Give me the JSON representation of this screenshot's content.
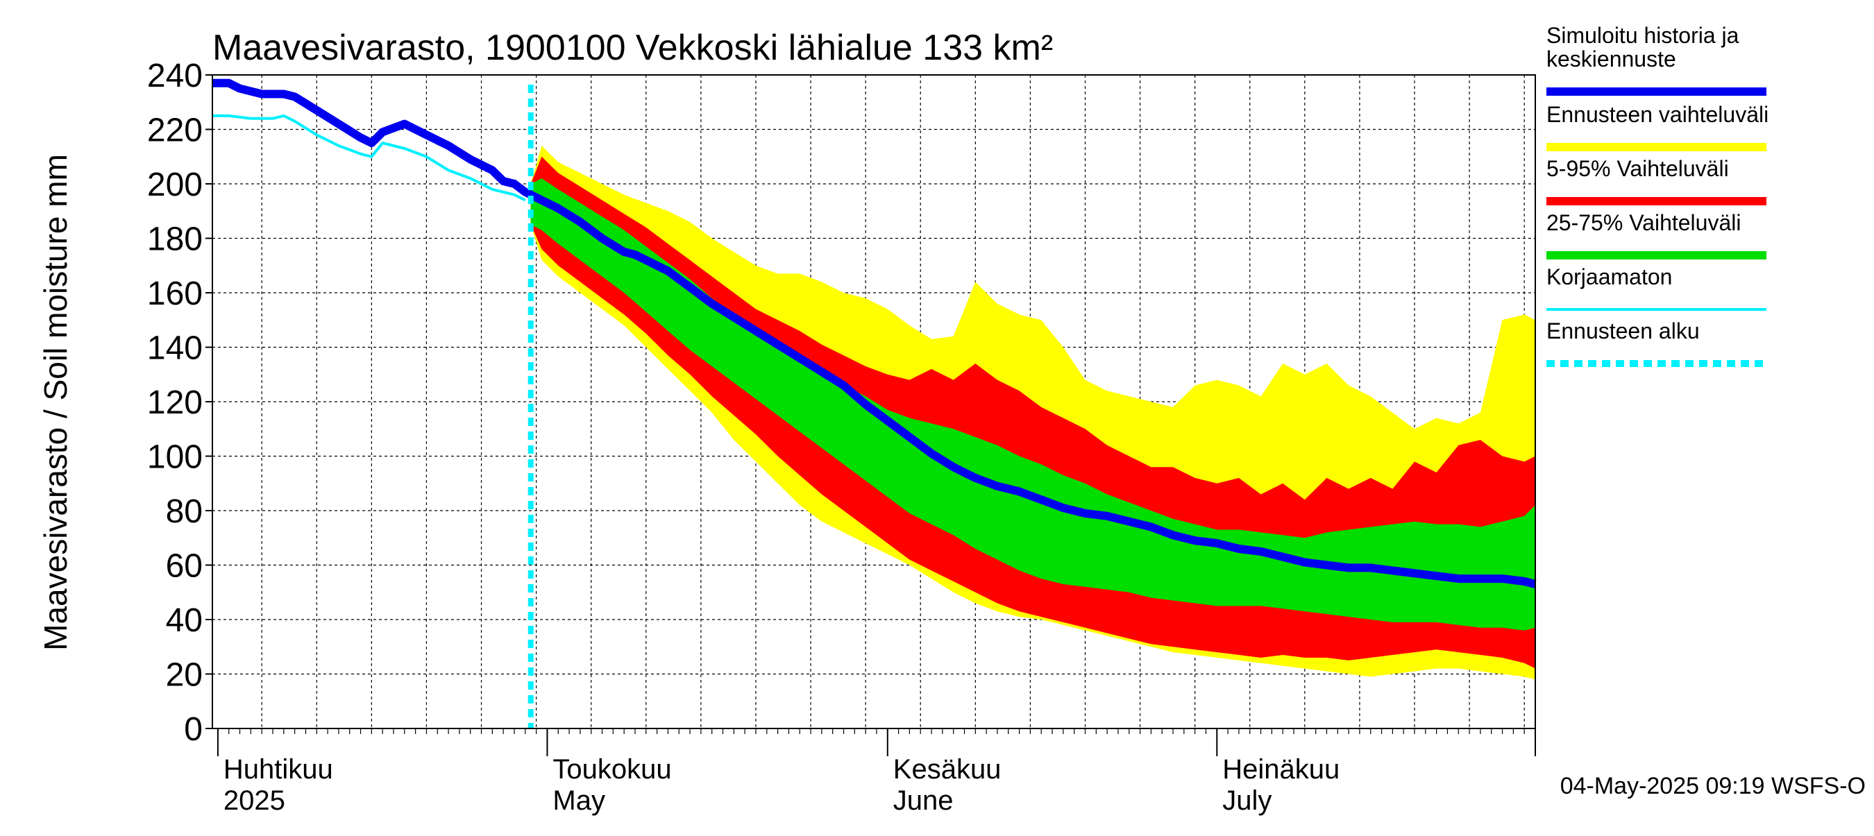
{
  "colors": {
    "simulated": "#0000ee",
    "uncorrected": "#00f0ff",
    "range_full": "#ffff00",
    "range_5_95": "#ff0000",
    "range_25_75": "#00dd00",
    "forecast_start": "#00f0ff"
  },
  "chart_data": {
    "type": "area",
    "title": "Maavesivarasto, 1900100 Vekkoski lähialue 133 km²",
    "ylabel": "Maavesivarasto / Soil moisture   mm",
    "xlabel": "",
    "ylim": [
      0,
      240
    ],
    "yticks": [
      0,
      20,
      40,
      60,
      80,
      100,
      120,
      140,
      160,
      180,
      200,
      220,
      240
    ],
    "grid": true,
    "x_unit": "day of year 2025",
    "x_start_day": 90.5,
    "x_end_day": 211,
    "month_starts": [
      91,
      121,
      152,
      182
    ],
    "month_labels": [
      {
        "day": 91,
        "fi": "Huhtikuu",
        "en": "2025"
      },
      {
        "day": 121,
        "fi": "Toukokuu",
        "en": "May"
      },
      {
        "day": 152,
        "fi": "Kesäkuu",
        "en": "June"
      },
      {
        "day": 182,
        "fi": "Heinäkuu",
        "en": "July"
      }
    ],
    "forecast_start_day": 119.5,
    "legend": [
      {
        "key": "simulated",
        "label": "Simuloitu historia ja keskiennuste",
        "lines": [
          "Simuloitu historia ja",
          "keskiennuste"
        ],
        "style": "line"
      },
      {
        "key": "range_full",
        "label": "Ennusteen vaihteluväli",
        "lines": [
          "Ennusteen vaihteluväli"
        ],
        "style": "band"
      },
      {
        "key": "range_5_95",
        "label": "5-95% Vaihteluväli",
        "lines": [
          "5-95% Vaihteluväli"
        ],
        "style": "band"
      },
      {
        "key": "range_25_75",
        "label": "25-75% Vaihteluväli",
        "lines": [
          "25-75% Vaihteluväli"
        ],
        "style": "band"
      },
      {
        "key": "uncorrected",
        "label": "Korjaamaton",
        "lines": [
          "Korjaamaton"
        ],
        "style": "thin"
      },
      {
        "key": "forecast_start",
        "label": "Ennusteen alku",
        "lines": [
          "Ennusteen alku"
        ],
        "style": "dotted"
      }
    ],
    "legend_position": "right",
    "footer": "04-May-2025 09:19 WSFS-O",
    "series": [
      {
        "name": "Simuloitu historia ja keskiennuste",
        "x": [
          90.5,
          92,
          93,
          95,
          96,
          97,
          98,
          100,
          102,
          104,
          105,
          106,
          108,
          110,
          112,
          114,
          116,
          117,
          118,
          119,
          120,
          121,
          122,
          124,
          126,
          128,
          129,
          130,
          132,
          134,
          136,
          138,
          140,
          142,
          144,
          146,
          148,
          150,
          152,
          154,
          156,
          158,
          160,
          162,
          164,
          166,
          168,
          170,
          172,
          174,
          176,
          178,
          180,
          182,
          184,
          186,
          188,
          190,
          192,
          194,
          196,
          198,
          200,
          202,
          204,
          206,
          208,
          210,
          211
        ],
        "values": [
          237,
          237,
          235,
          233,
          233,
          233,
          232,
          227,
          222,
          217,
          215,
          219,
          222,
          218,
          214,
          209,
          205,
          201,
          200,
          197,
          195,
          193,
          191,
          186,
          180,
          175,
          174,
          172,
          168,
          162,
          156,
          151,
          146,
          141,
          136,
          131,
          126,
          119,
          113,
          107,
          101,
          96,
          92,
          89,
          87,
          84,
          81,
          79,
          78,
          76,
          74,
          71,
          69,
          68,
          66,
          65,
          63,
          61,
          60,
          59,
          59,
          58,
          57,
          56,
          55,
          55,
          55,
          54,
          53
        ]
      },
      {
        "name": "Korjaamaton",
        "x": [
          90.5,
          92,
          94,
          96,
          97,
          98,
          100,
          102,
          104,
          105,
          106,
          108,
          110,
          112,
          114,
          116,
          117,
          118,
          119
        ],
        "values": [
          225,
          225,
          224,
          224,
          225,
          223,
          218,
          214,
          211,
          210,
          215,
          213,
          210,
          205,
          202,
          198,
          197,
          196,
          194
        ]
      },
      {
        "name": "Ennusteen vaihteluväli",
        "x": [
          119.5,
          120.5,
          122,
          124,
          126,
          128,
          130,
          132,
          134,
          136,
          138,
          140,
          142,
          144,
          146,
          148,
          150,
          152,
          154,
          156,
          158,
          160,
          162,
          164,
          166,
          168,
          170,
          172,
          174,
          176,
          178,
          180,
          182,
          184,
          186,
          188,
          190,
          192,
          194,
          196,
          198,
          200,
          202,
          204,
          206,
          208,
          210,
          211
        ],
        "upper": [
          200,
          214,
          208,
          204,
          200,
          196,
          193,
          190,
          186,
          180,
          175,
          170,
          167,
          167,
          164,
          160,
          158,
          154,
          148,
          143,
          144,
          164,
          156,
          152,
          150,
          140,
          128,
          124,
          122,
          120,
          118,
          126,
          128,
          126,
          122,
          134,
          130,
          134,
          126,
          122,
          116,
          110,
          114,
          112,
          116,
          150,
          152,
          150
        ],
        "lower": [
          185,
          172,
          166,
          160,
          154,
          148,
          140,
          132,
          124,
          116,
          106,
          98,
          90,
          82,
          76,
          72,
          68,
          64,
          60,
          55,
          50,
          46,
          43,
          41,
          40,
          38,
          36,
          34,
          32,
          30,
          28,
          27,
          26,
          25,
          24,
          23,
          22,
          21,
          20,
          19,
          20,
          21,
          22,
          22,
          21,
          20,
          19,
          18
        ]
      },
      {
        "name": "5-95% Vaihteluväli",
        "x": [
          119.5,
          120.5,
          122,
          124,
          126,
          128,
          130,
          132,
          134,
          136,
          138,
          140,
          142,
          144,
          146,
          148,
          150,
          152,
          154,
          156,
          158,
          160,
          162,
          164,
          166,
          168,
          170,
          172,
          174,
          176,
          178,
          180,
          182,
          184,
          186,
          188,
          190,
          192,
          194,
          196,
          198,
          200,
          202,
          204,
          206,
          208,
          210,
          211
        ],
        "upper": [
          200,
          210,
          204,
          199,
          194,
          189,
          184,
          178,
          172,
          166,
          160,
          154,
          150,
          146,
          141,
          137,
          133,
          130,
          128,
          132,
          128,
          134,
          128,
          124,
          118,
          114,
          110,
          104,
          100,
          96,
          96,
          92,
          90,
          92,
          86,
          90,
          84,
          92,
          88,
          92,
          88,
          98,
          94,
          104,
          106,
          100,
          98,
          100
        ],
        "lower": [
          185,
          176,
          170,
          164,
          158,
          152,
          145,
          137,
          130,
          122,
          115,
          108,
          100,
          93,
          86,
          80,
          74,
          68,
          62,
          58,
          54,
          50,
          46,
          43,
          41,
          39,
          37,
          35,
          33,
          31,
          30,
          29,
          28,
          27,
          26,
          27,
          26,
          26,
          25,
          26,
          27,
          28,
          29,
          28,
          27,
          26,
          24,
          22
        ]
      },
      {
        "name": "25-75% Vaihteluväli",
        "x": [
          119.5,
          120.5,
          122,
          124,
          126,
          128,
          130,
          132,
          134,
          136,
          138,
          140,
          142,
          144,
          146,
          148,
          150,
          152,
          154,
          156,
          158,
          160,
          162,
          164,
          166,
          168,
          170,
          172,
          174,
          176,
          178,
          180,
          182,
          184,
          186,
          188,
          190,
          192,
          194,
          196,
          198,
          200,
          202,
          204,
          206,
          208,
          210,
          211
        ],
        "upper": [
          200,
          202,
          198,
          193,
          188,
          183,
          177,
          171,
          165,
          158,
          152,
          146,
          140,
          136,
          131,
          126,
          122,
          117,
          114,
          112,
          110,
          107,
          104,
          100,
          97,
          93,
          90,
          86,
          83,
          80,
          77,
          75,
          73,
          73,
          72,
          71,
          70,
          72,
          73,
          74,
          75,
          76,
          75,
          75,
          74,
          76,
          78,
          82
        ],
        "lower": [
          185,
          183,
          178,
          172,
          166,
          160,
          153,
          146,
          139,
          133,
          127,
          121,
          115,
          109,
          103,
          97,
          91,
          85,
          79,
          75,
          71,
          66,
          62,
          58,
          55,
          53,
          52,
          51,
          50,
          48,
          47,
          46,
          45,
          45,
          45,
          44,
          43,
          42,
          41,
          40,
          39,
          39,
          39,
          38,
          37,
          37,
          36,
          37
        ]
      }
    ]
  }
}
